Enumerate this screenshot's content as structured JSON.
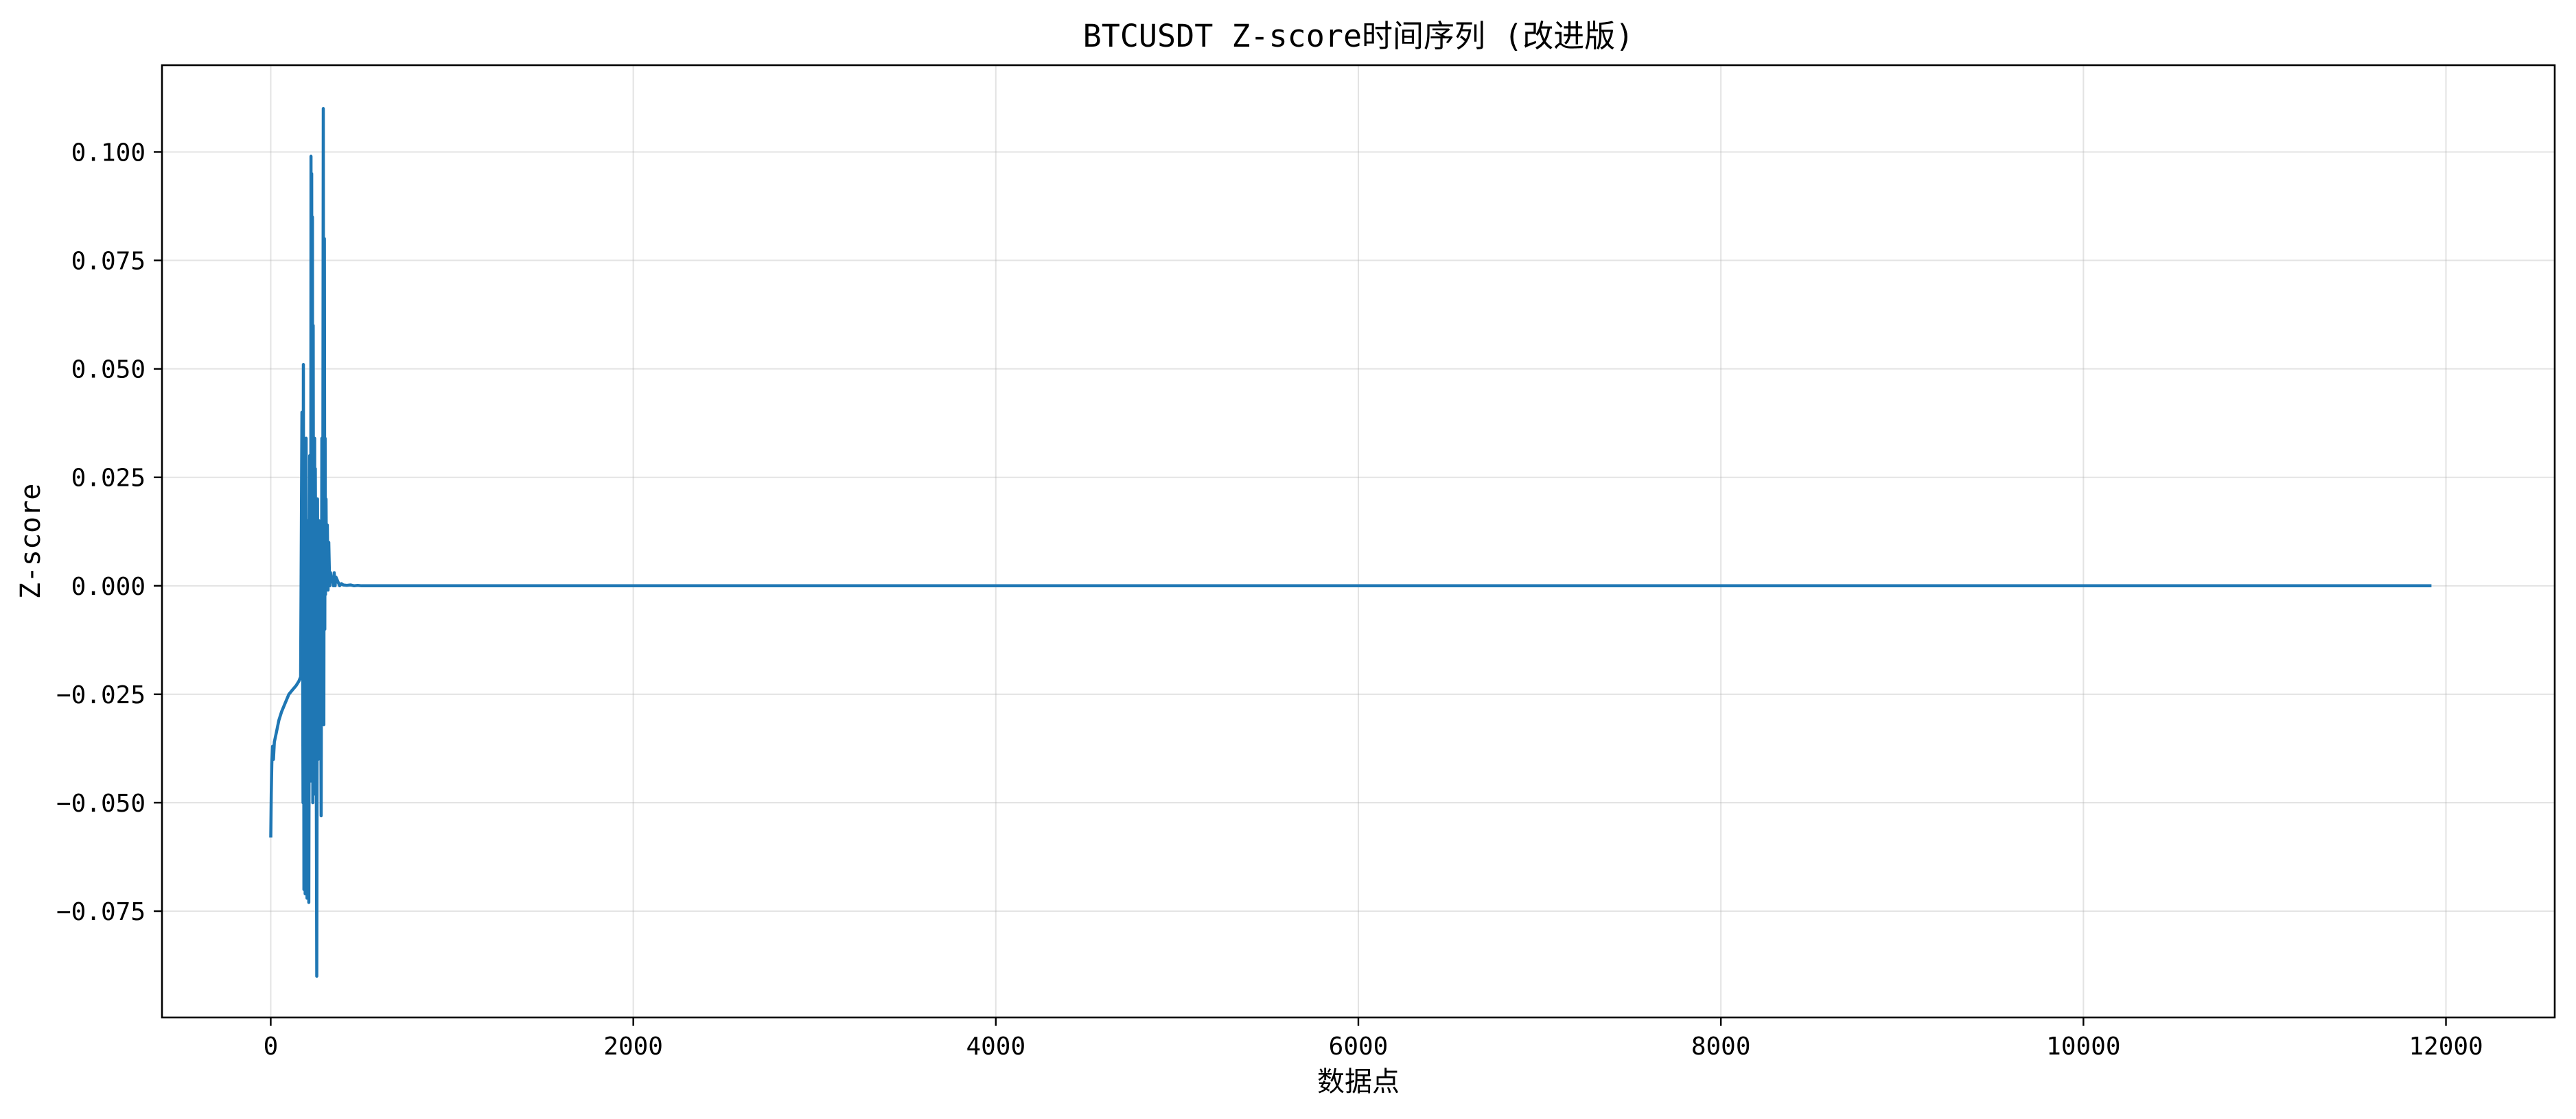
{
  "chart_data": {
    "type": "line",
    "title": "BTCUSDT Z-score时间序列 (改进版)",
    "xlabel": "数据点",
    "ylabel": "Z-score",
    "xlim": [
      -600,
      12600
    ],
    "ylim": [
      -0.0995,
      0.12
    ],
    "grid": true,
    "legend": "none",
    "x_ticks": [
      0,
      2000,
      4000,
      6000,
      8000,
      10000,
      12000
    ],
    "x_tick_labels": [
      "0",
      "2000",
      "4000",
      "6000",
      "8000",
      "10000",
      "12000"
    ],
    "y_ticks": [
      -0.075,
      -0.05,
      -0.025,
      0.0,
      0.025,
      0.05,
      0.075,
      0.1
    ],
    "y_tick_labels": [
      "−0.075",
      "−0.050",
      "−0.025",
      "0.000",
      "0.025",
      "0.050",
      "0.075",
      "0.100"
    ],
    "series": [
      {
        "color": "#1f77b4",
        "x": [
          0,
          3,
          6,
          10,
          15,
          20,
          30,
          45,
          60,
          80,
          100,
          120,
          140,
          155,
          165,
          172,
          178,
          180,
          183,
          186,
          190,
          195,
          200,
          205,
          210,
          215,
          220,
          222,
          224,
          226,
          228,
          230,
          232,
          234,
          236,
          238,
          240,
          242,
          244,
          246,
          250,
          254,
          258,
          262,
          266,
          270,
          274,
          278,
          282,
          286,
          290,
          293,
          296,
          298,
          300,
          302,
          305,
          308,
          312,
          316,
          320,
          325,
          330,
          335,
          340,
          345,
          350,
          355,
          360,
          370,
          380,
          390,
          400,
          420,
          440,
          460,
          480,
          500,
          550,
          600,
          700,
          800,
          1000,
          2000,
          4000,
          6000,
          8000,
          10000,
          11920
        ],
        "y": [
          -0.058,
          -0.048,
          -0.041,
          -0.037,
          -0.04,
          -0.036,
          -0.034,
          -0.031,
          -0.029,
          -0.027,
          -0.025,
          -0.024,
          -0.023,
          -0.022,
          -0.021,
          0.04,
          -0.05,
          0.051,
          -0.07,
          0.02,
          -0.071,
          0.034,
          -0.072,
          0.015,
          -0.073,
          0.03,
          -0.045,
          0.099,
          -0.03,
          0.095,
          -0.02,
          0.085,
          -0.05,
          0.06,
          -0.01,
          0.03,
          -0.048,
          0.034,
          -0.01,
          0.027,
          -0.02,
          -0.09,
          0.02,
          -0.04,
          0.015,
          -0.035,
          0.01,
          -0.053,
          0.034,
          -0.03,
          0.11,
          -0.032,
          0.08,
          -0.01,
          0.034,
          -0.002,
          0.02,
          0.0,
          0.014,
          -0.001,
          0.01,
          0.0,
          0.003,
          0.001,
          0.002,
          0.0,
          0.003,
          0.0,
          0.002,
          0.001,
          0.0,
          0.0005,
          0.0002,
          0.0001,
          0.0002,
          0.0,
          0.0001,
          0.0,
          0.0,
          0.0,
          0.0,
          0.0,
          0.0,
          0.0,
          0.0,
          0.0,
          0.0,
          0.0,
          0.0
        ]
      }
    ]
  }
}
